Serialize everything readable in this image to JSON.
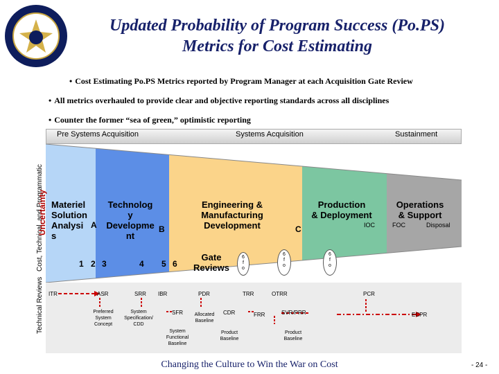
{
  "title": {
    "line1": "Updated Probability of Program Success (Po.PS)",
    "line2": "Metrics for Cost Estimating"
  },
  "bullets": [
    "Cost Estimating Po.PS Metrics reported by Program Manager at each Acquisition Gate Review",
    "All metrics overhauled to provide clear and objective reporting standards across all disciplines",
    "Counter the former “sea of green,” optimistic reporting"
  ],
  "bullet_marker": "•",
  "phases": {
    "pre": "Pre Systems Acquisition",
    "sys": "Systems Acquisition",
    "sus": "Sustainment"
  },
  "y_labels": {
    "main": "Cost, Technical, and Programmatic",
    "uncertainty": "Uncertainty",
    "reviews": "Technical Reviews"
  },
  "blocks": {
    "materiel": "Materiel\nSolution\nAnalysi\ns",
    "technology": "Technolog\ny\nDevelopme\nnt",
    "emd": "Engineering &\nManufacturing\nDevelopment",
    "production": "Production\n& Deployment",
    "operations": "Operations\n& Support"
  },
  "milestones": {
    "a": "A",
    "b": "B",
    "c": "C",
    "ioc": "IOC",
    "foc": "FOC",
    "disposal": "Disposal"
  },
  "gates": {
    "label": "Gate\nReviews",
    "n1": "1",
    "n2": "2",
    "n3": "3",
    "n4": "4",
    "n5": "5",
    "n6": "6",
    "c1": "6\nf\no",
    "c2": "6\nf\no",
    "c3": "6\nf\no"
  },
  "reviews": {
    "itr": "ITR",
    "asr": "ASR",
    "srr": "SRR",
    "ibr": "IBR",
    "pdr": "PDR",
    "trr": "TRR",
    "otrr": "OTRR",
    "pcr": "PCR",
    "sfr": "SFR",
    "cdr": "CDR",
    "frr": "FRR",
    "svr_prr": "SVR/PRR",
    "ecpr": "ECPR",
    "preferred": "Preferred\nSystem\nConcept",
    "spec": "System\nSpecification/\nCDD",
    "allocated": "Allocated\nBaseline",
    "functional": "System\nFunctional\nBaseline",
    "product1": "Product\nBaseline",
    "product2": "Product\nBaseline"
  },
  "footer": "Changing the Culture to Win the War on Cost",
  "page_number": "- 24 -",
  "colors": {
    "title": "#17216a",
    "materiel": "#b6d6f7",
    "technology": "#5c8ee6",
    "emd": "#fbd48a",
    "production": "#7cc6a1",
    "operations": "#a6a6a6",
    "reviews_bg": "#ececec",
    "arrow_red": "#cc0000"
  }
}
